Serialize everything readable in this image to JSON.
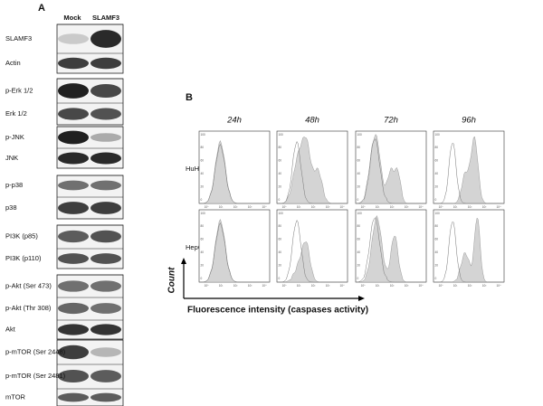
{
  "panel_a": {
    "label": "A",
    "lanes": [
      "Mock",
      "SLAMF3"
    ],
    "rows": [
      "SLAMF3",
      "Actin",
      "p-Erk 1/2",
      "Erk 1/2",
      "p-JNK",
      "JNK",
      "p-p38",
      "p38",
      "PI3K (p85)",
      "PI3K (p110)",
      "p-Akt (Ser 473)",
      "p-Akt (Thr 308)",
      "Akt",
      "p-mTOR (Ser 2448)",
      "p-mTOR (Ser 2481)",
      "mTOR"
    ]
  },
  "panel_b": {
    "label": "B",
    "timepoints": [
      "24h",
      "48h",
      "72h",
      "96h"
    ],
    "cell_lines": [
      "HuH7",
      "HepG2"
    ],
    "y_axis_label": "Count",
    "x_axis_label": "Fluorescence intensity (caspases activity)",
    "histogram_yticks": [
      "100",
      "80",
      "60",
      "40",
      "20",
      "0"
    ],
    "histogram_xticks": [
      "10⁰",
      "10¹",
      "10²",
      "10³",
      "10⁴"
    ]
  }
}
